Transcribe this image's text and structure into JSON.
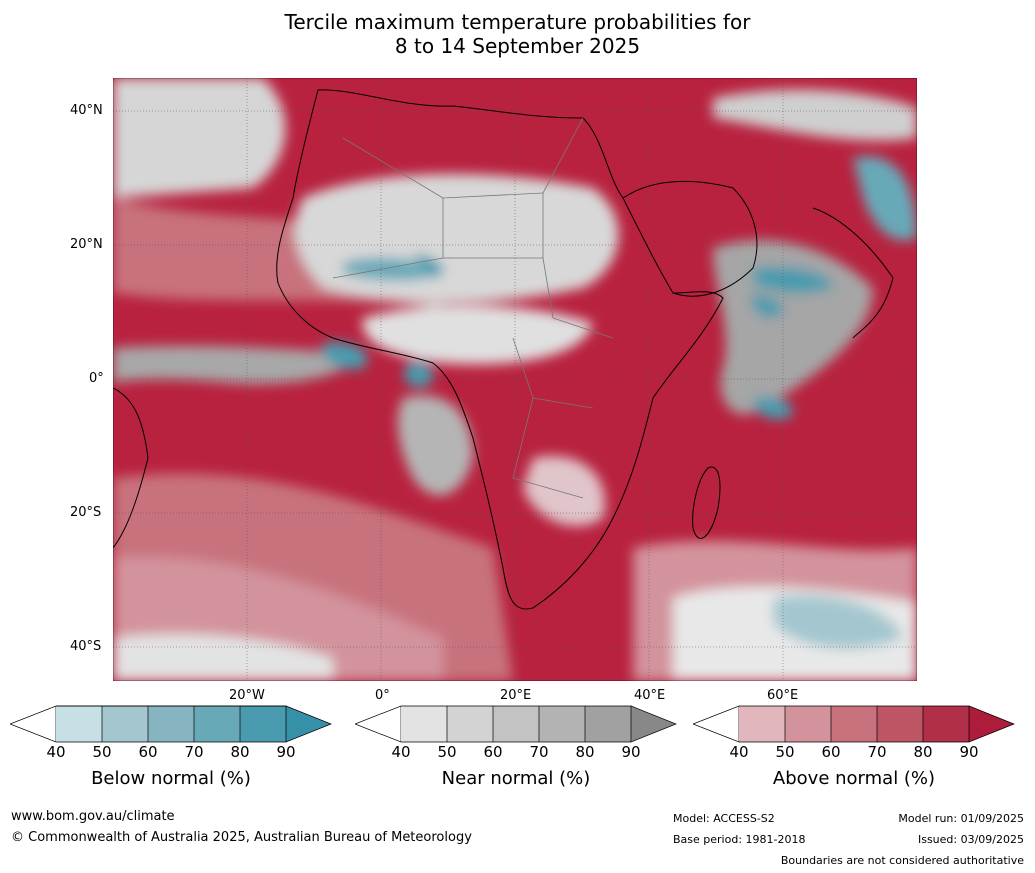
{
  "title": {
    "line1": "Tercile maximum temperature probabilities for",
    "line2": "8 to 14 September 2025"
  },
  "map": {
    "lat_labels": [
      "40°N",
      "20°N",
      "0°",
      "20°S",
      "40°S"
    ],
    "lon_labels": [
      "20°W",
      "0°",
      "20°E",
      "40°E",
      "60°E"
    ]
  },
  "colorbars": [
    {
      "label": "Below normal (%)",
      "ticks": [
        "40",
        "50",
        "60",
        "70",
        "80",
        "90"
      ],
      "colors": [
        "#c7e0e6",
        "#a4c7cf",
        "#86b4c0",
        "#68a9b8",
        "#4a9baf"
      ],
      "over": "#3690a8"
    },
    {
      "label": "Near normal (%)",
      "ticks": [
        "40",
        "50",
        "60",
        "70",
        "80",
        "90"
      ],
      "colors": [
        "#e3e3e3",
        "#d3d3d3",
        "#c3c3c3",
        "#b3b3b3",
        "#a1a1a1"
      ],
      "over": "#888888"
    },
    {
      "label": "Above normal (%)",
      "ticks": [
        "40",
        "50",
        "60",
        "70",
        "80",
        "90"
      ],
      "colors": [
        "#e1b7bd",
        "#d3939c",
        "#c8727d",
        "#be5565",
        "#b12f48"
      ],
      "over": "#ad1c3b"
    }
  ],
  "footer": {
    "website": "www.bom.gov.au/climate",
    "copyright": "© Commonwealth of Australia 2025, Australian Bureau of Meteorology",
    "model": "Model: ACCESS-S2",
    "base_period": "Base period: 1981-2018",
    "model_run": "Model run: 01/09/2025",
    "issued": "Issued: 03/09/2025",
    "disclaimer": "Boundaries are not considered authoritative"
  }
}
